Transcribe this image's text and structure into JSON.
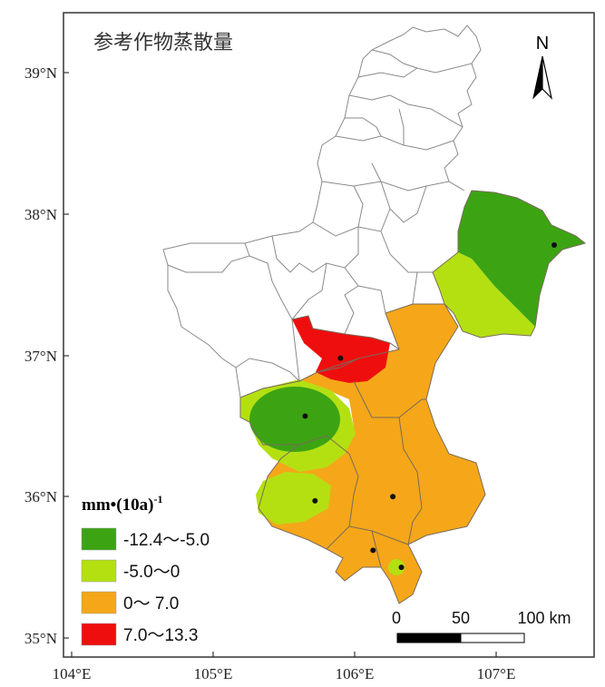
{
  "title": "参考作物蒸散量",
  "x_ticks": [
    "104°E",
    "105°E",
    "106°E",
    "107°E"
  ],
  "y_ticks": [
    "39°N",
    "38°N",
    "37°N",
    "36°N",
    "35°N"
  ],
  "north_label": "N",
  "legend": {
    "title": "mm•(10a)",
    "title_sup": "-1",
    "items": [
      {
        "label": "-12.4～-5.0",
        "color": "#3ca413"
      },
      {
        "label": "-5.0～0",
        "color": "#b4e012"
      },
      {
        "label": "0～ 7.0",
        "color": "#f5a719"
      },
      {
        "label": "7.0～13.3",
        "color": "#ef0e0e"
      }
    ]
  },
  "scale_bar": {
    "labels": [
      "0",
      "50",
      "100 km"
    ]
  },
  "stations": [
    {
      "lon": 107.41,
      "lat": 37.78
    },
    {
      "lon": 105.9,
      "lat": 36.98
    },
    {
      "lon": 105.65,
      "lat": 36.57
    },
    {
      "lon": 105.72,
      "lat": 35.97
    },
    {
      "lon": 106.27,
      "lat": 36.0
    },
    {
      "lon": 106.13,
      "lat": 35.62
    },
    {
      "lon": 106.33,
      "lat": 35.5
    }
  ]
}
